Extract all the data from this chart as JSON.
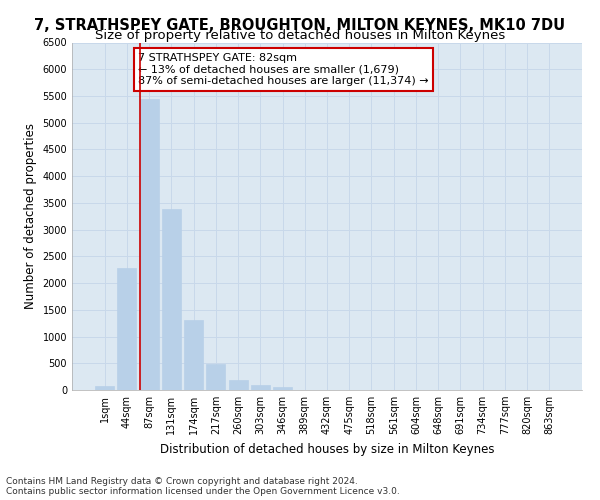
{
  "title": "7, STRATHSPEY GATE, BROUGHTON, MILTON KEYNES, MK10 7DU",
  "subtitle": "Size of property relative to detached houses in Milton Keynes",
  "xlabel": "Distribution of detached houses by size in Milton Keynes",
  "ylabel": "Number of detached properties",
  "footnote1": "Contains HM Land Registry data © Crown copyright and database right 2024.",
  "footnote2": "Contains public sector information licensed under the Open Government Licence v3.0.",
  "annotation_title": "7 STRATHSPEY GATE: 82sqm",
  "annotation_line2": "← 13% of detached houses are smaller (1,679)",
  "annotation_line3": "87% of semi-detached houses are larger (11,374) →",
  "categories": [
    "1sqm",
    "44sqm",
    "87sqm",
    "131sqm",
    "174sqm",
    "217sqm",
    "260sqm",
    "303sqm",
    "346sqm",
    "389sqm",
    "432sqm",
    "475sqm",
    "518sqm",
    "561sqm",
    "604sqm",
    "648sqm",
    "691sqm",
    "734sqm",
    "777sqm",
    "820sqm",
    "863sqm"
  ],
  "values": [
    75,
    2280,
    5450,
    3380,
    1310,
    480,
    195,
    90,
    65,
    0,
    0,
    0,
    0,
    0,
    0,
    0,
    0,
    0,
    0,
    0,
    0
  ],
  "bar_color": "#b8d0e8",
  "bar_edge_color": "#b8d0e8",
  "vline_color": "#cc0000",
  "annotation_box_color": "#ffffff",
  "annotation_box_edgecolor": "#cc0000",
  "ylim": [
    0,
    6500
  ],
  "yticks": [
    0,
    500,
    1000,
    1500,
    2000,
    2500,
    3000,
    3500,
    4000,
    4500,
    5000,
    5500,
    6000,
    6500
  ],
  "grid_color": "#c8d8ea",
  "plot_bg_color": "#dce8f2",
  "fig_bg_color": "#ffffff",
  "title_fontsize": 10.5,
  "subtitle_fontsize": 9.5,
  "axis_label_fontsize": 8.5,
  "tick_fontsize": 7,
  "annotation_fontsize": 8,
  "footnote_fontsize": 6.5
}
